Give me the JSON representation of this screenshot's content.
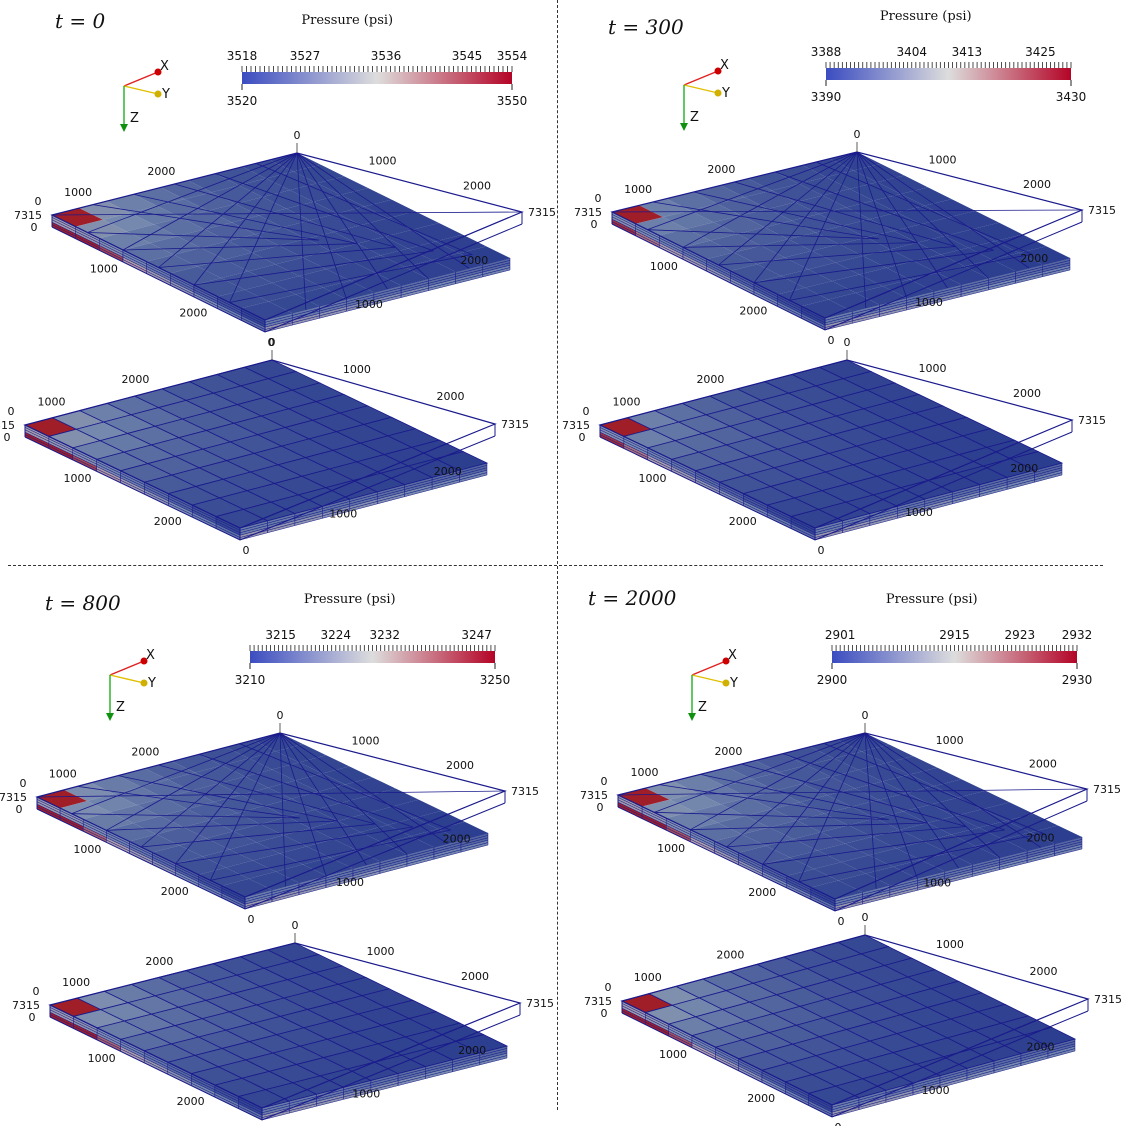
{
  "panels": [
    {
      "time": "t = 0",
      "colorbar": {
        "title": "Pressure (psi)",
        "top_labels": [
          "3518",
          "3527",
          "3536",
          "3545",
          "3554"
        ],
        "range": [
          3520,
          3550
        ],
        "min_label": "3520",
        "max_label": "3550"
      },
      "relative_pressure": 0.9
    },
    {
      "time": "t = 300",
      "colorbar": {
        "title": "Pressure (psi)",
        "top_labels": [
          "3388",
          "3404",
          "3413",
          "3425"
        ],
        "range": [
          3390,
          3430
        ],
        "min_label": "3390",
        "max_label": "3430"
      },
      "relative_pressure": 0.7
    },
    {
      "time": "t = 800",
      "colorbar": {
        "title": "Pressure (psi)",
        "top_labels": [
          "3215",
          "3224",
          "3232",
          "3247"
        ],
        "range": [
          3210,
          3250
        ],
        "min_label": "3210",
        "max_label": "3250"
      },
      "relative_pressure": 0.85
    },
    {
      "time": "t = 2000",
      "colorbar": {
        "title": "Pressure (psi)",
        "top_labels": [
          "2901",
          "2915",
          "2923",
          "2932"
        ],
        "range": [
          2900,
          2930
        ],
        "min_label": "2900",
        "max_label": "2930"
      },
      "relative_pressure": 0.88
    }
  ],
  "axis_ticks": {
    "corner_0": "0",
    "corner_1000": "1000",
    "corner_2000": "2000",
    "depth": "7315"
  },
  "triad": {
    "x": "X",
    "y": "Y",
    "z": "Z"
  },
  "colors": {
    "low": "#3b4cc0",
    "mid": "#dddddd",
    "high": "#b40426",
    "grid_line": "#1a1a8c"
  }
}
